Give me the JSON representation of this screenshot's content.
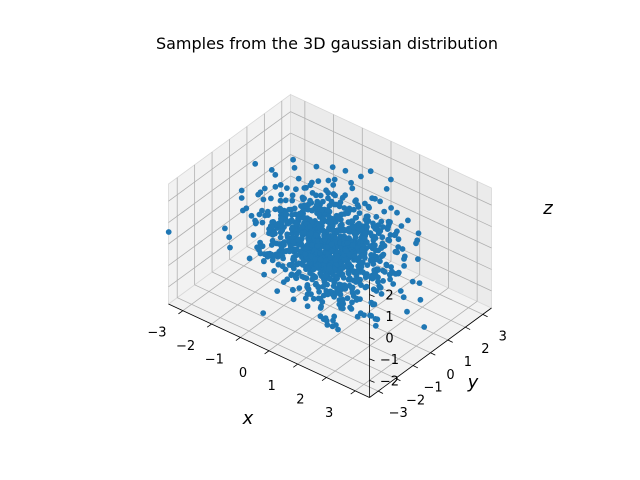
{
  "chart_data": {
    "type": "scatter",
    "title": "Samples from the 3D gaussian distribution",
    "xlabel": "x",
    "ylabel": "y",
    "zlabel": "z",
    "xlim": [
      -3.5,
      3.5
    ],
    "ylim": [
      -3.5,
      3.5
    ],
    "zlim": [
      -2.8,
      2.8
    ],
    "x_ticks": [
      "−3",
      "−2",
      "−1",
      "0",
      "1",
      "2",
      "3"
    ],
    "y_ticks": [
      "−3",
      "−2",
      "−1",
      "0",
      "1",
      "2",
      "3"
    ],
    "z_ticks": [
      "−2",
      "−1",
      "0",
      "1",
      "2"
    ],
    "grid": true,
    "marker_color": "#1f77b4",
    "n_points": 1000,
    "distribution": {
      "mean": [
        0,
        0,
        0
      ],
      "std": [
        1,
        1,
        1
      ]
    }
  }
}
